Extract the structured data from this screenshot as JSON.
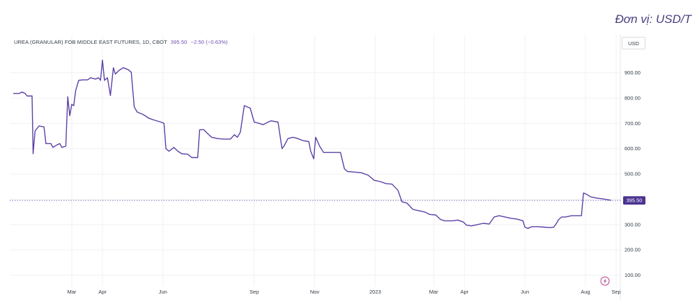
{
  "unit_note": "Đơn vị: USD/T",
  "legend": {
    "symbol": "UREA (GRANULAR) FOB MIDDLE EAST FUTURES, 1D, CBOT",
    "last": "395.50",
    "change": "−2.50 (−0.63%)"
  },
  "currency": "USD",
  "price_label": "395.50",
  "colors": {
    "line": "#5b3fa6",
    "price_tag": "#4a3390",
    "grid": "#f0f1f4",
    "axis_text": "#333a45"
  },
  "chart_data": {
    "type": "line",
    "title": "UREA (GRANULAR) FOB MIDDLE EAST FUTURES, 1D, CBOT",
    "xlabel": "",
    "ylabel": "",
    "ylim": [
      55,
      1050
    ],
    "yticks": [
      100,
      200,
      300,
      400,
      500,
      600,
      700,
      800,
      900
    ],
    "ytick_labels": [
      "100.00",
      "200.00",
      "300.00",
      "400.00",
      "500.00",
      "600.00",
      "700.00",
      "800.00",
      "900.00"
    ],
    "xticks": [
      {
        "label": "Mar",
        "x": "2022-03-01"
      },
      {
        "label": "Apr",
        "x": "2022-04-01"
      },
      {
        "label": "Jun",
        "x": "2022-06-01"
      },
      {
        "label": "Sep",
        "x": "2022-09-01"
      },
      {
        "label": "Nov",
        "x": "2022-11-01"
      },
      {
        "label": "2023",
        "x": "2023-01-01"
      },
      {
        "label": "Mar",
        "x": "2023-03-01"
      },
      {
        "label": "Apr",
        "x": "2023-04-01"
      },
      {
        "label": "Jun",
        "x": "2023-06-01"
      },
      {
        "label": "Aug",
        "x": "2023-08-01"
      },
      {
        "label": "Sep",
        "x": "2023-09-01"
      }
    ],
    "x_range": [
      "2022-01-01",
      "2023-09-01"
    ],
    "last_value": 395.5,
    "grid": true,
    "series": [
      {
        "points": [
          [
            "2022-01-01",
            818
          ],
          [
            "2022-01-07",
            818
          ],
          [
            "2022-01-10",
            824
          ],
          [
            "2022-01-13",
            818
          ],
          [
            "2022-01-15",
            808
          ],
          [
            "2022-01-20",
            808
          ],
          [
            "2022-01-21",
            580
          ],
          [
            "2022-01-23",
            670
          ],
          [
            "2022-01-27",
            690
          ],
          [
            "2022-02-01",
            686
          ],
          [
            "2022-02-03",
            620
          ],
          [
            "2022-02-08",
            620
          ],
          [
            "2022-02-10",
            605
          ],
          [
            "2022-02-14",
            615
          ],
          [
            "2022-02-17",
            620
          ],
          [
            "2022-02-19",
            605
          ],
          [
            "2022-02-23",
            610
          ],
          [
            "2022-02-25",
            805
          ],
          [
            "2022-02-27",
            730
          ],
          [
            "2022-03-01",
            775
          ],
          [
            "2022-03-03",
            770
          ],
          [
            "2022-03-05",
            830
          ],
          [
            "2022-03-08",
            870
          ],
          [
            "2022-03-12",
            872
          ],
          [
            "2022-03-17",
            872
          ],
          [
            "2022-03-20",
            880
          ],
          [
            "2022-03-25",
            875
          ],
          [
            "2022-03-28",
            880
          ],
          [
            "2022-03-30",
            870
          ],
          [
            "2022-04-01",
            950
          ],
          [
            "2022-04-03",
            870
          ],
          [
            "2022-04-06",
            880
          ],
          [
            "2022-04-09",
            810
          ],
          [
            "2022-04-12",
            920
          ],
          [
            "2022-04-14",
            895
          ],
          [
            "2022-04-18",
            910
          ],
          [
            "2022-04-22",
            920
          ],
          [
            "2022-04-27",
            912
          ],
          [
            "2022-04-30",
            902
          ],
          [
            "2022-05-03",
            765
          ],
          [
            "2022-05-06",
            745
          ],
          [
            "2022-05-12",
            735
          ],
          [
            "2022-05-18",
            720
          ],
          [
            "2022-05-24",
            712
          ],
          [
            "2022-05-30",
            705
          ],
          [
            "2022-06-02",
            700
          ],
          [
            "2022-06-04",
            600
          ],
          [
            "2022-06-07",
            590
          ],
          [
            "2022-06-12",
            605
          ],
          [
            "2022-06-16",
            590
          ],
          [
            "2022-06-20",
            580
          ],
          [
            "2022-06-26",
            578
          ],
          [
            "2022-06-30",
            565
          ],
          [
            "2022-07-06",
            565
          ],
          [
            "2022-07-08",
            675
          ],
          [
            "2022-07-12",
            675
          ],
          [
            "2022-07-16",
            660
          ],
          [
            "2022-07-20",
            645
          ],
          [
            "2022-07-26",
            640
          ],
          [
            "2022-08-01",
            638
          ],
          [
            "2022-08-08",
            638
          ],
          [
            "2022-08-12",
            655
          ],
          [
            "2022-08-15",
            645
          ],
          [
            "2022-08-18",
            665
          ],
          [
            "2022-08-22",
            770
          ],
          [
            "2022-08-28",
            760
          ],
          [
            "2022-09-01",
            705
          ],
          [
            "2022-09-06",
            700
          ],
          [
            "2022-09-10",
            695
          ],
          [
            "2022-09-15",
            705
          ],
          [
            "2022-09-18",
            710
          ],
          [
            "2022-09-25",
            705
          ],
          [
            "2022-09-29",
            600
          ],
          [
            "2022-10-01",
            610
          ],
          [
            "2022-10-05",
            640
          ],
          [
            "2022-10-10",
            645
          ],
          [
            "2022-10-15",
            640
          ],
          [
            "2022-10-20",
            632
          ],
          [
            "2022-10-26",
            628
          ],
          [
            "2022-10-28",
            590
          ],
          [
            "2022-10-31",
            560
          ],
          [
            "2022-11-02",
            645
          ],
          [
            "2022-11-06",
            610
          ],
          [
            "2022-11-10",
            585
          ],
          [
            "2022-11-14",
            585
          ],
          [
            "2022-11-20",
            585
          ],
          [
            "2022-11-27",
            585
          ],
          [
            "2022-12-01",
            520
          ],
          [
            "2022-12-04",
            510
          ],
          [
            "2022-12-10",
            508
          ],
          [
            "2022-12-18",
            505
          ],
          [
            "2022-12-25",
            495
          ],
          [
            "2022-12-31",
            475
          ],
          [
            "2023-01-06",
            470
          ],
          [
            "2023-01-12",
            462
          ],
          [
            "2023-01-18",
            460
          ],
          [
            "2023-01-24",
            435
          ],
          [
            "2023-01-28",
            390
          ],
          [
            "2023-02-02",
            385
          ],
          [
            "2023-02-08",
            360
          ],
          [
            "2023-02-14",
            355
          ],
          [
            "2023-02-20",
            350
          ],
          [
            "2023-02-25",
            340
          ],
          [
            "2023-03-03",
            338
          ],
          [
            "2023-03-08",
            320
          ],
          [
            "2023-03-12",
            315
          ],
          [
            "2023-03-20",
            315
          ],
          [
            "2023-03-25",
            318
          ],
          [
            "2023-03-31",
            310
          ],
          [
            "2023-04-03",
            298
          ],
          [
            "2023-04-08",
            295
          ],
          [
            "2023-04-14",
            300
          ],
          [
            "2023-04-20",
            305
          ],
          [
            "2023-04-26",
            302
          ],
          [
            "2023-05-01",
            330
          ],
          [
            "2023-05-06",
            335
          ],
          [
            "2023-05-12",
            330
          ],
          [
            "2023-05-18",
            325
          ],
          [
            "2023-05-24",
            322
          ],
          [
            "2023-05-30",
            315
          ],
          [
            "2023-06-01",
            290
          ],
          [
            "2023-06-04",
            285
          ],
          [
            "2023-06-08",
            292
          ],
          [
            "2023-06-14",
            292
          ],
          [
            "2023-06-20",
            290
          ],
          [
            "2023-06-26",
            288
          ],
          [
            "2023-06-30",
            290
          ],
          [
            "2023-07-02",
            300
          ],
          [
            "2023-07-05",
            320
          ],
          [
            "2023-07-08",
            330
          ],
          [
            "2023-07-12",
            330
          ],
          [
            "2023-07-18",
            335
          ],
          [
            "2023-07-24",
            335
          ],
          [
            "2023-07-28",
            335
          ],
          [
            "2023-07-30",
            425
          ],
          [
            "2023-08-03",
            418
          ],
          [
            "2023-08-06",
            410
          ],
          [
            "2023-08-12",
            405
          ],
          [
            "2023-08-18",
            402
          ],
          [
            "2023-08-24",
            398
          ],
          [
            "2023-08-27",
            395.5
          ]
        ]
      }
    ]
  }
}
